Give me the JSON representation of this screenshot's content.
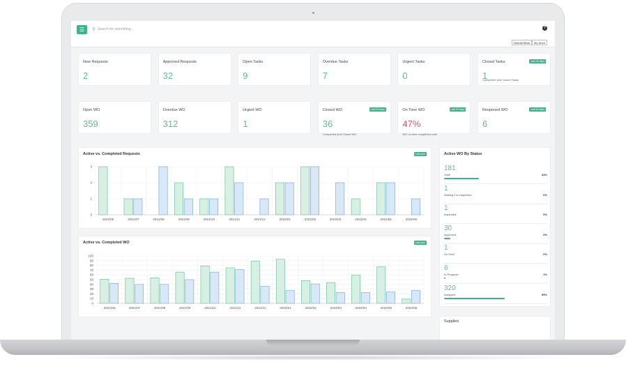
{
  "header": {
    "search_placeholder": "Search for something...",
    "tabs": [
      "Overall Work",
      "My Work"
    ]
  },
  "icons": {
    "menu": "hamburger-icon",
    "search": "search-icon",
    "help": "help-icon"
  },
  "colors": {
    "accent": "#3fb38a",
    "value": "#5bbd99",
    "danger": "#e85a5a",
    "completed_bar": "#d8efe4",
    "completed_stroke": "#5bbd99",
    "active_bar": "#d9e8f6",
    "active_stroke": "#6aa3d8"
  },
  "cards_row1": [
    {
      "label": "New Requests",
      "value": "2",
      "badge": "",
      "sub": ""
    },
    {
      "label": "Approved Requests",
      "value": "32",
      "badge": "",
      "sub": ""
    },
    {
      "label": "Open Tasks",
      "value": "9",
      "badge": "",
      "sub": ""
    },
    {
      "label": "Overdue Tasks",
      "value": "7",
      "badge": "",
      "sub": ""
    },
    {
      "label": "Urgent Tasks",
      "value": "0",
      "badge": "",
      "sub": ""
    },
    {
      "label": "Closed Tasks",
      "value": "1",
      "badge": "Last 30 days",
      "sub": "Completed and Closed Tasks"
    }
  ],
  "cards_row2": [
    {
      "label": "Open WO",
      "value": "359",
      "badge": "",
      "sub": ""
    },
    {
      "label": "Overdue WO",
      "value": "312",
      "badge": "",
      "sub": ""
    },
    {
      "label": "Urgent WO",
      "value": "1",
      "badge": "",
      "sub": ""
    },
    {
      "label": "Closed WO",
      "value": "36",
      "badge": "Last 30 days",
      "sub": "Completed and Closed WO"
    },
    {
      "label": "On Time WO",
      "value": "47%",
      "badge": "Last 30 days",
      "sub": "WO on time completion rate"
    },
    {
      "label": "Reopened WO",
      "value": "6",
      "badge": "Last 30 days",
      "sub": ""
    }
  ],
  "requests_panel": {
    "title": "Active vs. Completed Requests",
    "badge": "Last year"
  },
  "wo_panel": {
    "title": "Active vs. Completed WO",
    "badge": "Last year"
  },
  "chart_data": [
    {
      "type": "bar",
      "title": "Active vs. Completed Requests",
      "categories": [
        "2021/06",
        "2021/07",
        "2021/08",
        "2021/09",
        "2021/10",
        "2021/11",
        "2021/12",
        "2022/01",
        "2022/02",
        "2022/03",
        "2022/04",
        "2022/05",
        "2022/06"
      ],
      "series": [
        {
          "values": [
            3,
            1,
            0,
            2,
            1,
            3,
            0,
            2,
            3,
            0,
            1,
            2,
            0
          ]
        },
        {
          "values": [
            0,
            1,
            3,
            1,
            1,
            2,
            1,
            2,
            3,
            2,
            0,
            2,
            1
          ]
        }
      ],
      "ylim": [
        0,
        3
      ],
      "yticks": [
        "0",
        "1",
        "2",
        "3"
      ],
      "grid": true
    },
    {
      "type": "bar",
      "title": "Active vs. Completed WO",
      "categories": [
        "2021/06",
        "2021/07",
        "2021/08",
        "2021/09",
        "2021/10",
        "2021/11",
        "2021/12",
        "2022/01",
        "2022/02",
        "2022/03",
        "2022/04",
        "2022/05",
        "2022/06"
      ],
      "series": [
        {
          "values": [
            51,
            53,
            54,
            66,
            79,
            75,
            89,
            93,
            48,
            44,
            60,
            77,
            9
          ]
        },
        {
          "values": [
            42,
            40,
            40,
            50,
            66,
            71,
            36,
            27,
            41,
            23,
            23,
            24,
            27
          ]
        }
      ],
      "ylim": [
        0,
        100
      ],
      "yticks": [
        "0",
        "10",
        "20",
        "30",
        "40",
        "50",
        "60",
        "70",
        "80",
        "90",
        "100"
      ],
      "grid": true
    }
  ],
  "status_panel": {
    "title": "Active WO By Status",
    "rows": [
      {
        "count": "181",
        "name": "Draft",
        "pct": "34%",
        "fraction": 0.34
      },
      {
        "count": "1",
        "name": "Waiting For Inspection",
        "pct": "0%",
        "fraction": 0
      },
      {
        "count": "1",
        "name": "Inspected",
        "pct": "0%",
        "fraction": 0
      },
      {
        "count": "30",
        "name": "Approved",
        "pct": "6%",
        "fraction": 0.06
      },
      {
        "count": "1",
        "name": "On Hold",
        "pct": "0%",
        "fraction": 0
      },
      {
        "count": "6",
        "name": "In Progress",
        "pct": "1%",
        "fraction": 0.01
      },
      {
        "count": "320",
        "name": "Assigned",
        "pct": "59%",
        "fraction": 0.59
      }
    ]
  },
  "supplies": {
    "title": "Supplies"
  }
}
